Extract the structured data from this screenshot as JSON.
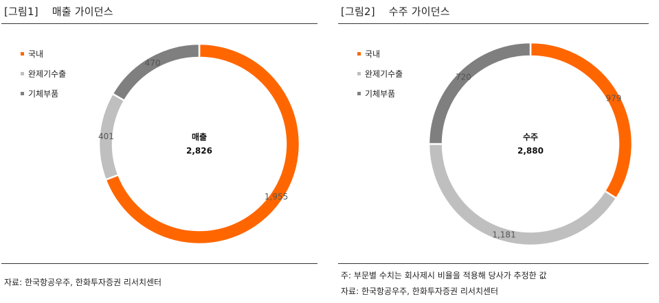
{
  "charts": [
    {
      "title": "[그림1]    매출 가이던스",
      "legend": [
        {
          "label": "국내",
          "color": "#FF6600"
        },
        {
          "label": "완제기수출",
          "color": "#BFBFBF"
        },
        {
          "label": "기체부품",
          "color": "#7F7F7F"
        }
      ],
      "notes": [
        "자료: 한국항공우주, 한화투자증권 리서치센터"
      ]
    },
    {
      "title": "[그림2]    수주 가이던스",
      "legend": [
        {
          "label": "국내",
          "color": "#FF6600"
        },
        {
          "label": "완제기수출",
          "color": "#BFBFBF"
        },
        {
          "label": "기체부품",
          "color": "#7F7F7F"
        }
      ],
      "notes": [
        "주: 부문별 수치는 회사제시 비율을 적용해 당사가 추정한 값",
        "자료: 한국항공우주, 한화투자증권 리서치센터"
      ]
    }
  ],
  "chart_data": [
    {
      "type": "pie",
      "title": "매출 가이던스",
      "center_label": "매출",
      "center_value": "2,826",
      "categories": [
        "국내",
        "완제기수출",
        "기체부품"
      ],
      "values": [
        1955,
        401,
        470
      ],
      "value_labels": [
        "1,955",
        "401",
        "470"
      ],
      "colors": [
        "#FF6600",
        "#BFBFBF",
        "#7F7F7F"
      ],
      "legend_position": "left"
    },
    {
      "type": "pie",
      "title": "수주 가이던스",
      "center_label": "수주",
      "center_value": "2,880",
      "categories": [
        "국내",
        "완제기수출",
        "기체부품"
      ],
      "values": [
        979,
        1181,
        720
      ],
      "value_labels": [
        "979",
        "1,181",
        "720"
      ],
      "colors": [
        "#FF6600",
        "#BFBFBF",
        "#7F7F7F"
      ],
      "legend_position": "left"
    }
  ]
}
